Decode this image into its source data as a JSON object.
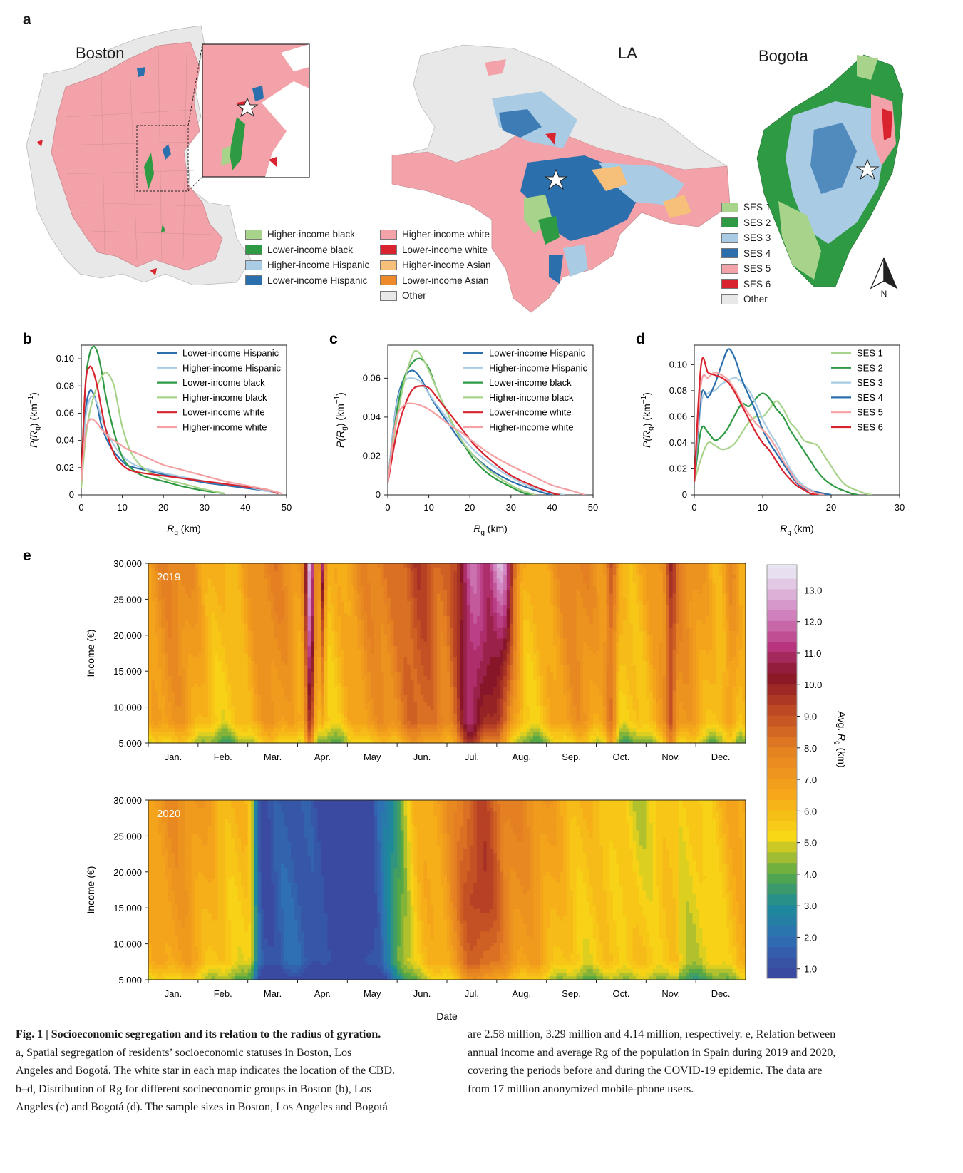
{
  "panel_a": {
    "letter": "a",
    "cities": {
      "boston": "Boston",
      "la": "LA",
      "bogota": "Bogota"
    },
    "race_legend_left": [
      {
        "label": "Higher-income black",
        "color": "#a8d38a"
      },
      {
        "label": "Lower-income black",
        "color": "#2f9a44"
      },
      {
        "label": "Higher-income Hispanic",
        "color": "#a9cbe4"
      },
      {
        "label": "Lower-income Hispanic",
        "color": "#2c6fad"
      }
    ],
    "race_legend_right": [
      {
        "label": "Higher-income white",
        "color": "#f2a2a8"
      },
      {
        "label": "Lower-income white",
        "color": "#d9232e"
      },
      {
        "label": "Higher-income Asian",
        "color": "#f7c07a"
      },
      {
        "label": "Lower-income Asian",
        "color": "#ef8a2b"
      },
      {
        "label": "Other",
        "color": "#e8e8e8"
      }
    ],
    "ses_legend": [
      {
        "label": "SES 1",
        "color": "#a8d38a"
      },
      {
        "label": "SES 2",
        "color": "#2f9a44"
      },
      {
        "label": "SES 3",
        "color": "#a9cbe4"
      },
      {
        "label": "SES 4",
        "color": "#2c6fad"
      },
      {
        "label": "SES 5",
        "color": "#f2a2a8"
      },
      {
        "label": "SES 6",
        "color": "#d9232e"
      },
      {
        "label": "Other",
        "color": "#e8e8e8"
      }
    ],
    "north_label": "N"
  },
  "chart_data": [
    {
      "id": "b",
      "type": "line",
      "letter": "b",
      "xlabel": "R",
      "xlabel_sub": "g",
      "xlabel_unit": " (km)",
      "ylabel": "P(R",
      "ylabel_sub": "g",
      "ylabel_unit": ") (km",
      "xlim": [
        0,
        50
      ],
      "ylim": [
        0,
        0.11
      ],
      "xticks": [
        0,
        10,
        20,
        30,
        40,
        50
      ],
      "yticks": [
        0,
        0.02,
        0.04,
        0.06,
        0.08,
        0.1
      ],
      "ytick_labels": [
        "0",
        "0.02",
        "0.04",
        "0.06",
        "0.08",
        "0.10"
      ],
      "series": [
        {
          "name": "Lower-income Hispanic",
          "color": "#2c6fad",
          "x": [
            0,
            1,
            2,
            3,
            4,
            5,
            7,
            9,
            11,
            13,
            16,
            20,
            25,
            30,
            35,
            40,
            45,
            48
          ],
          "y": [
            0.01,
            0.06,
            0.076,
            0.074,
            0.064,
            0.05,
            0.036,
            0.028,
            0.022,
            0.02,
            0.018,
            0.015,
            0.012,
            0.009,
            0.007,
            0.005,
            0.003,
            0.001
          ]
        },
        {
          "name": "Higher-income Hispanic",
          "color": "#a9cbe4",
          "x": [
            0,
            1,
            2,
            3,
            4,
            5,
            7,
            9,
            11,
            13,
            16,
            20,
            25,
            30,
            35,
            40,
            45,
            48
          ],
          "y": [
            0.01,
            0.055,
            0.07,
            0.072,
            0.066,
            0.056,
            0.042,
            0.032,
            0.026,
            0.022,
            0.019,
            0.016,
            0.013,
            0.01,
            0.008,
            0.006,
            0.003,
            0.001
          ]
        },
        {
          "name": "Lower-income black",
          "color": "#2f9a44",
          "x": [
            0,
            1,
            2,
            3,
            4,
            5,
            6,
            8,
            10,
            12,
            15,
            20,
            25,
            30,
            35
          ],
          "y": [
            0.01,
            0.08,
            0.103,
            0.109,
            0.104,
            0.09,
            0.072,
            0.046,
            0.028,
            0.02,
            0.014,
            0.01,
            0.006,
            0.003,
            0.001
          ]
        },
        {
          "name": "Higher-income black",
          "color": "#a8d38a",
          "x": [
            0,
            1,
            2,
            3,
            4,
            5,
            6,
            7,
            8,
            9,
            10,
            12,
            15,
            20,
            25,
            30,
            35
          ],
          "y": [
            0.005,
            0.04,
            0.06,
            0.072,
            0.081,
            0.087,
            0.09,
            0.087,
            0.08,
            0.065,
            0.05,
            0.032,
            0.02,
            0.012,
            0.008,
            0.004,
            0.001
          ]
        },
        {
          "name": "Lower-income white",
          "color": "#d9232e",
          "x": [
            0,
            1,
            2,
            3,
            4,
            5,
            6,
            8,
            10,
            12,
            15,
            20,
            25,
            30,
            35,
            40,
            45,
            48
          ],
          "y": [
            0.01,
            0.08,
            0.094,
            0.09,
            0.078,
            0.062,
            0.048,
            0.03,
            0.022,
            0.018,
            0.016,
            0.014,
            0.012,
            0.01,
            0.008,
            0.006,
            0.004,
            0.001
          ]
        },
        {
          "name": "Higher-income white",
          "color": "#f4a1a4",
          "x": [
            0,
            1,
            2,
            3,
            4,
            5,
            7,
            9,
            11,
            14,
            17,
            20,
            25,
            30,
            35,
            40,
            45,
            49
          ],
          "y": [
            0.01,
            0.045,
            0.055,
            0.055,
            0.052,
            0.048,
            0.042,
            0.038,
            0.034,
            0.03,
            0.026,
            0.022,
            0.018,
            0.014,
            0.01,
            0.007,
            0.004,
            0.001
          ]
        }
      ]
    },
    {
      "id": "c",
      "type": "line",
      "letter": "c",
      "xlabel": "R",
      "xlabel_sub": "g",
      "xlabel_unit": " (km)",
      "ylabel": "P(R",
      "ylabel_sub": "g",
      "ylabel_unit": ") (km",
      "xlim": [
        0,
        50
      ],
      "ylim": [
        0,
        0.077
      ],
      "xticks": [
        0,
        10,
        20,
        30,
        40,
        50
      ],
      "yticks": [
        0,
        0.02,
        0.04,
        0.06
      ],
      "ytick_labels": [
        "0",
        "0.02",
        "0.04",
        "0.06"
      ],
      "series": [
        {
          "name": "Lower-income Hispanic",
          "color": "#2c6fad",
          "x": [
            0,
            2,
            4,
            6,
            8,
            10,
            12,
            15,
            18,
            21,
            25,
            30,
            35,
            38,
            40
          ],
          "y": [
            0.006,
            0.045,
            0.06,
            0.064,
            0.06,
            0.052,
            0.045,
            0.036,
            0.027,
            0.02,
            0.013,
            0.007,
            0.003,
            0.001,
            0
          ]
        },
        {
          "name": "Higher-income Hispanic",
          "color": "#a9cbe4",
          "x": [
            0,
            2,
            4,
            6,
            8,
            10,
            12,
            15,
            18,
            21,
            25,
            30,
            35,
            40,
            43
          ],
          "y": [
            0.006,
            0.044,
            0.058,
            0.06,
            0.058,
            0.052,
            0.046,
            0.038,
            0.03,
            0.023,
            0.016,
            0.009,
            0.004,
            0.001,
            0
          ]
        },
        {
          "name": "Lower-income black",
          "color": "#2f9a44",
          "x": [
            0,
            2,
            4,
            6,
            8,
            10,
            12,
            15,
            18,
            21,
            25,
            30,
            33,
            35
          ],
          "y": [
            0.006,
            0.04,
            0.06,
            0.068,
            0.07,
            0.065,
            0.054,
            0.04,
            0.028,
            0.018,
            0.01,
            0.004,
            0.001,
            0
          ]
        },
        {
          "name": "Higher-income black",
          "color": "#a8d38a",
          "x": [
            0,
            2,
            4,
            6,
            7,
            8,
            10,
            12,
            15,
            18,
            21,
            25,
            30,
            33,
            36
          ],
          "y": [
            0.006,
            0.036,
            0.058,
            0.072,
            0.074,
            0.072,
            0.064,
            0.054,
            0.04,
            0.028,
            0.02,
            0.012,
            0.005,
            0.002,
            0
          ]
        },
        {
          "name": "Lower-income white",
          "color": "#d9232e",
          "x": [
            0,
            2,
            4,
            6,
            8,
            10,
            12,
            15,
            18,
            21,
            25,
            30,
            35,
            40,
            42
          ],
          "y": [
            0.006,
            0.03,
            0.045,
            0.054,
            0.056,
            0.055,
            0.05,
            0.042,
            0.034,
            0.026,
            0.018,
            0.01,
            0.005,
            0.001,
            0
          ]
        },
        {
          "name": "Higher-income white",
          "color": "#f4a1a4",
          "x": [
            0,
            2,
            4,
            6,
            8,
            10,
            12,
            15,
            18,
            21,
            25,
            30,
            35,
            40,
            45,
            48
          ],
          "y": [
            0.006,
            0.038,
            0.046,
            0.047,
            0.046,
            0.044,
            0.041,
            0.036,
            0.032,
            0.027,
            0.021,
            0.015,
            0.01,
            0.005,
            0.002,
            0
          ]
        }
      ]
    },
    {
      "id": "d",
      "type": "line",
      "letter": "d",
      "xlabel": "R",
      "xlabel_sub": "g",
      "xlabel_unit": " (km)",
      "ylabel": "P(R",
      "ylabel_sub": "g",
      "ylabel_unit": ") (km",
      "xlim": [
        0,
        30
      ],
      "ylim": [
        0,
        0.115
      ],
      "xticks": [
        0,
        10,
        20,
        30
      ],
      "yticks": [
        0,
        0.02,
        0.04,
        0.06,
        0.08,
        0.1
      ],
      "ytick_labels": [
        "0",
        "0.02",
        "0.04",
        "0.06",
        "0.08",
        "0.10"
      ],
      "series": [
        {
          "name": "SES 1",
          "color": "#a8d38a",
          "x": [
            0,
            1,
            2,
            3,
            4,
            5,
            6,
            7,
            8,
            9,
            10,
            11,
            12,
            13,
            14,
            15,
            16,
            17,
            18,
            19,
            20,
            21,
            22,
            23,
            24,
            25,
            26
          ],
          "y": [
            0.01,
            0.028,
            0.04,
            0.038,
            0.035,
            0.036,
            0.04,
            0.048,
            0.056,
            0.06,
            0.06,
            0.066,
            0.072,
            0.066,
            0.056,
            0.05,
            0.042,
            0.04,
            0.038,
            0.03,
            0.022,
            0.014,
            0.008,
            0.005,
            0.003,
            0.001,
            0
          ]
        },
        {
          "name": "SES 2",
          "color": "#2f9a44",
          "x": [
            0,
            1,
            2,
            3,
            4,
            5,
            6,
            7,
            8,
            9,
            10,
            11,
            12,
            13,
            14,
            15,
            16,
            17,
            18,
            19,
            20,
            21,
            22,
            23,
            24
          ],
          "y": [
            0.01,
            0.05,
            0.048,
            0.042,
            0.045,
            0.052,
            0.062,
            0.07,
            0.068,
            0.074,
            0.078,
            0.074,
            0.066,
            0.06,
            0.05,
            0.042,
            0.034,
            0.026,
            0.018,
            0.012,
            0.008,
            0.005,
            0.003,
            0.001,
            0
          ]
        },
        {
          "name": "SES 3",
          "color": "#a9cbe4",
          "x": [
            0,
            1,
            2,
            3,
            4,
            5,
            6,
            7,
            8,
            9,
            10,
            11,
            12,
            13,
            14,
            15,
            16,
            17,
            18,
            19,
            20
          ],
          "y": [
            0.01,
            0.07,
            0.078,
            0.08,
            0.085,
            0.088,
            0.09,
            0.086,
            0.08,
            0.07,
            0.058,
            0.048,
            0.04,
            0.03,
            0.02,
            0.012,
            0.007,
            0.004,
            0.002,
            0.001,
            0
          ]
        },
        {
          "name": "SES 4",
          "color": "#2c6fad",
          "x": [
            0,
            1,
            2,
            3,
            4,
            5,
            6,
            7,
            8,
            9,
            10,
            11,
            12,
            13,
            14,
            15,
            16,
            17,
            18,
            19,
            20
          ],
          "y": [
            0.01,
            0.076,
            0.075,
            0.085,
            0.1,
            0.112,
            0.104,
            0.088,
            0.076,
            0.064,
            0.05,
            0.04,
            0.032,
            0.024,
            0.016,
            0.009,
            0.005,
            0.003,
            0.002,
            0.001,
            0
          ]
        },
        {
          "name": "SES 5",
          "color": "#f4a1a4",
          "x": [
            0,
            1,
            2,
            3,
            4,
            5,
            6,
            7,
            8,
            9,
            10,
            11,
            12,
            13,
            14,
            15,
            16,
            17,
            18,
            19
          ],
          "y": [
            0.01,
            0.085,
            0.09,
            0.094,
            0.092,
            0.088,
            0.08,
            0.07,
            0.062,
            0.055,
            0.05,
            0.044,
            0.036,
            0.026,
            0.018,
            0.01,
            0.006,
            0.003,
            0.001,
            0
          ]
        },
        {
          "name": "SES 6",
          "color": "#d9232e",
          "x": [
            0,
            1,
            2,
            3,
            4,
            5,
            6,
            7,
            8,
            9,
            10,
            11,
            12,
            13,
            14,
            15,
            16,
            17,
            18
          ],
          "y": [
            0.01,
            0.1,
            0.094,
            0.092,
            0.09,
            0.086,
            0.078,
            0.068,
            0.058,
            0.048,
            0.04,
            0.034,
            0.026,
            0.018,
            0.012,
            0.007,
            0.004,
            0.001,
            0
          ]
        }
      ]
    },
    {
      "id": "e2019",
      "type": "heatmap",
      "letter": "e",
      "tag": "2019",
      "ylabel": "Income (€)",
      "yticks": [
        "5,000",
        "10,000",
        "15,000",
        "20,000",
        "25,000",
        "30,000"
      ],
      "months": [
        "Jan.",
        "Feb.",
        "Mar.",
        "Apr.",
        "May",
        "Jun.",
        "Jul.",
        "Aug.",
        "Sep.",
        "Oct.",
        "Nov.",
        "Dec."
      ]
    },
    {
      "id": "e2020",
      "type": "heatmap",
      "tag": "2020",
      "ylabel": "Income (€)",
      "xlabel": "Date",
      "yticks": [
        "5,000",
        "10,000",
        "15,000",
        "20,000",
        "25,000",
        "30,000"
      ],
      "months": [
        "Jan.",
        "Feb.",
        "Mar.",
        "Apr.",
        "May",
        "Jun.",
        "Jul.",
        "Aug.",
        "Sep.",
        "Oct.",
        "Nov.",
        "Dec."
      ]
    },
    {
      "id": "colorbar",
      "type": "colorbar",
      "label": "Avg. R",
      "label_sub": "g",
      "label_unit": " (km)",
      "ticks": [
        "1.0",
        "2.0",
        "3.0",
        "4.0",
        "5.0",
        "6.0",
        "7.0",
        "8.0",
        "9.0",
        "10.0",
        "11.0",
        "12.0",
        "13.0"
      ],
      "range": [
        0.7,
        13.8
      ]
    }
  ],
  "caption": {
    "fig": "Fig. 1",
    "bar": " | ",
    "title": "Socioeconomic segregation and its relation to the radius of gyration.",
    "left_lines": [
      "a, Spatial segregation of residents’ socioeconomic statuses in Boston, Los",
      "Angeles and Bogotá. The white star in each map indicates the location of the CBD.",
      "b–d, Distribution of Rg for different socioeconomic groups in Boston (b), Los",
      "Angeles (c) and Bogotá (d). The sample sizes in Boston, Los Angeles and Bogotá"
    ],
    "right_lines": [
      "are 2.58 million, 3.29 million and 4.14 million, respectively. e, Relation between",
      "annual income and average Rg of the population in Spain during 2019 and 2020,",
      "covering the periods before and during the COVID-19 epidemic. The data are",
      "from 17 million anonymized mobile-phone users."
    ]
  }
}
